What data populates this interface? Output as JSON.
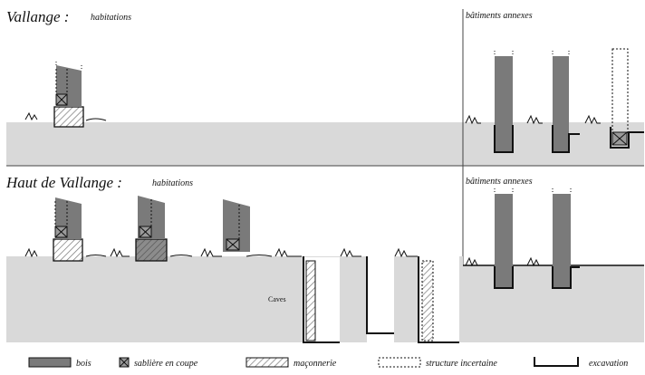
{
  "top": {
    "title": "Vallange :",
    "subtitle": "habitations",
    "annex_label": "bâtiments annexes"
  },
  "bottom": {
    "title": "Haut de Vallange :",
    "subtitle": "habitations",
    "annex_label": "bâtiments annexes",
    "caves_label": "Caves"
  },
  "legend": {
    "bois": "bois",
    "sabliere": "sablière en coupe",
    "maconnerie": "maçonnerie",
    "structure": "structure incertaine",
    "excavation": "excavation"
  },
  "colors": {
    "ground": "#d9d9d9",
    "wood": "#7a7a7a",
    "line": "#111111"
  }
}
